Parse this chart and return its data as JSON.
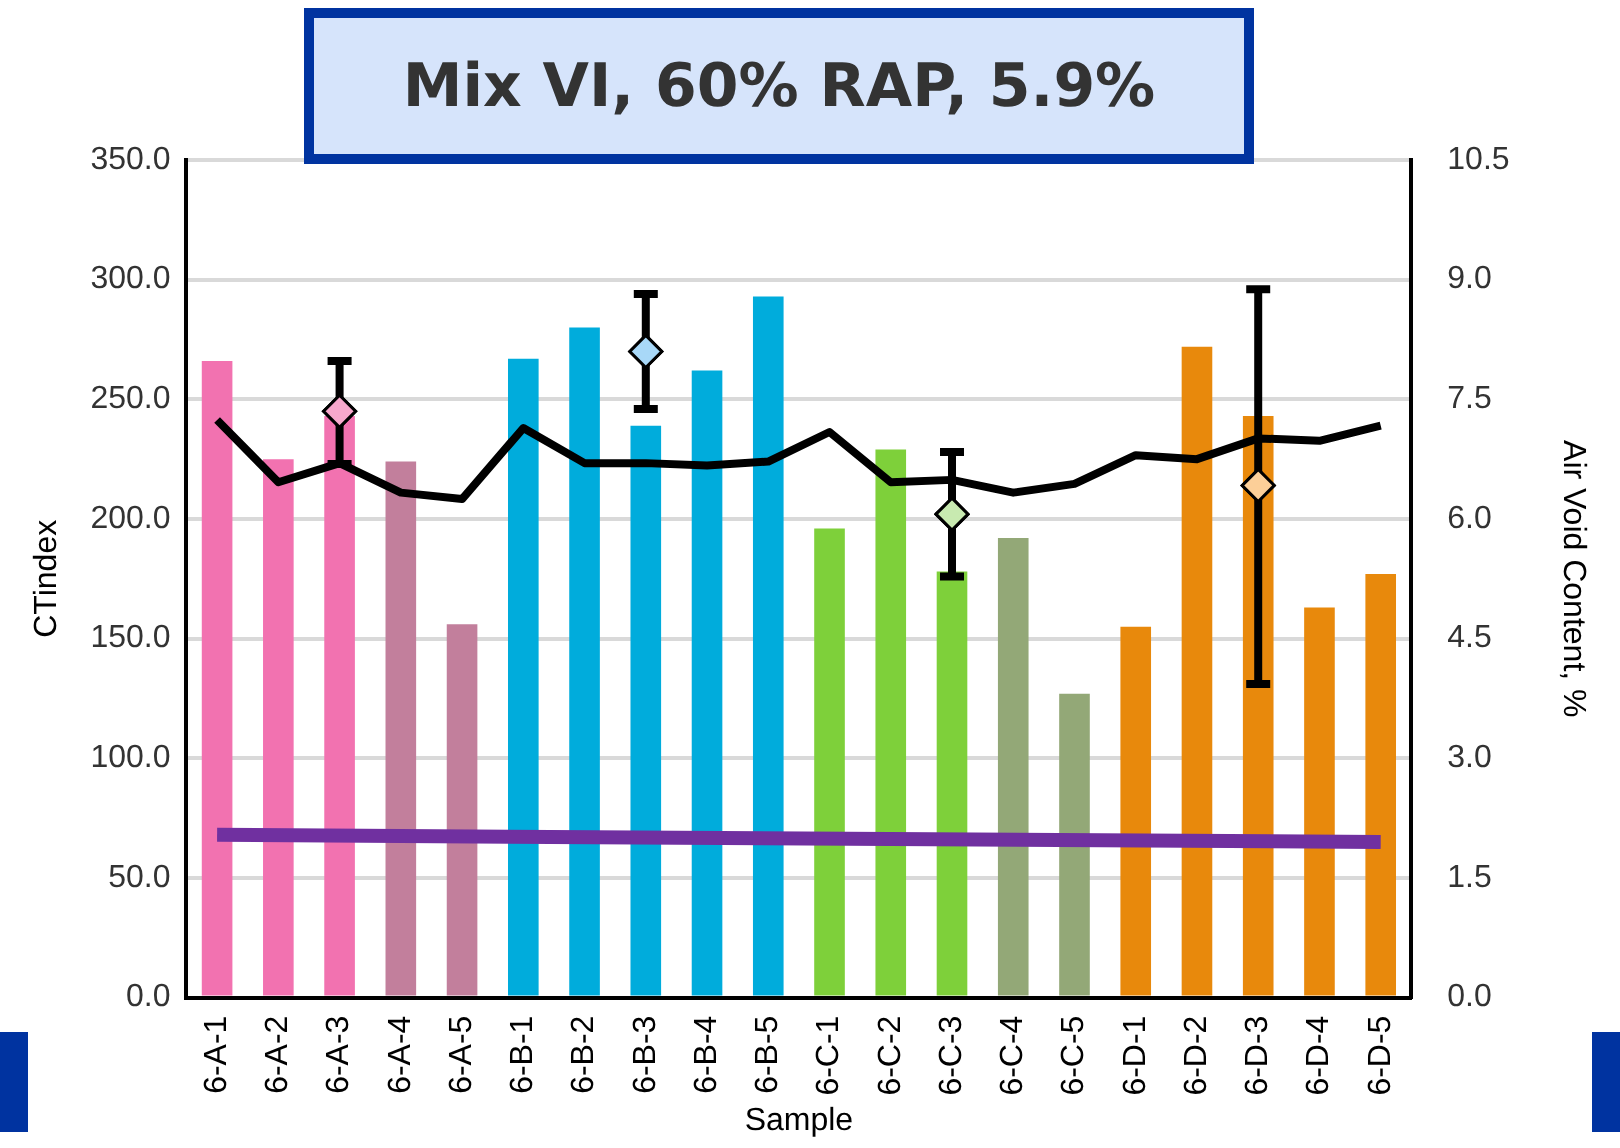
{
  "chart_data": {
    "type": "bar",
    "title": "Mix VI, 60% RAP, 5.9%",
    "xlabel": "Sample",
    "ylabel": "CTindex",
    "y2label": "Air Void Content, %",
    "categories": [
      "6-A-1",
      "6-A-2",
      "6-A-3",
      "6-A-4",
      "6-A-5",
      "6-B-1",
      "6-B-2",
      "6-B-3",
      "6-B-4",
      "6-B-5",
      "6-C-1",
      "6-C-2",
      "6-C-3",
      "6-C-4",
      "6-C-5",
      "6-D-1",
      "6-D-2",
      "6-D-3",
      "6-D-4",
      "6-D-5"
    ],
    "series": [
      {
        "colors": [
          "#f272b0",
          "#f272b0",
          "#f272b0",
          "#c27f9c",
          "#c27f9c",
          "#00acdc",
          "#00acdc",
          "#00acdc",
          "#00acdc",
          "#00acdc",
          "#7ed03a",
          "#7ed03a",
          "#7ed03a",
          "#93a877",
          "#93a877",
          "#e8890c",
          "#e8890c",
          "#e8890c",
          "#e8890c",
          "#e8890c"
        ],
        "values": [
          266,
          225,
          243,
          224,
          156,
          267,
          280,
          239,
          262,
          293,
          196,
          229,
          178,
          192,
          127,
          155,
          272,
          243,
          163,
          177
        ]
      },
      {
        "type": "line",
        "axis": "y2",
        "color": "#000000",
        "marker": "none",
        "values": [
          7.24,
          6.46,
          6.7,
          6.33,
          6.25,
          7.14,
          6.7,
          6.7,
          6.67,
          6.72,
          7.09,
          6.46,
          6.49,
          6.33,
          6.44,
          6.8,
          6.75,
          7.01,
          6.98,
          7.17
        ]
      },
      {
        "type": "line",
        "color": "#7030a0",
        "marker": "none",
        "x": [
          "6-A-1",
          "6-D-5"
        ],
        "values": [
          68,
          65
        ]
      },
      {
        "type": "scatter",
        "marker": "diamond",
        "x": [
          "6-A-3",
          "6-B-3",
          "6-C-3",
          "6-D-3"
        ],
        "colors": [
          "#f7a8cc",
          "#a8d8f8",
          "#c8eab0",
          "#fccf98"
        ],
        "values": [
          245,
          270,
          202,
          214
        ],
        "errors": [
          [
            223,
            266
          ],
          [
            246,
            294
          ],
          [
            176,
            228
          ],
          [
            131,
            296
          ]
        ]
      }
    ],
    "ylim": [
      0,
      350
    ],
    "yticks": [
      {
        "value": 0,
        "label": "0.0"
      },
      {
        "value": 50,
        "label": "50.0"
      },
      {
        "value": 100,
        "label": "100.0"
      },
      {
        "value": 150,
        "label": "150.0"
      },
      {
        "value": 200,
        "label": "200.0"
      },
      {
        "value": 250,
        "label": "250.0"
      },
      {
        "value": 300,
        "label": "300.0"
      },
      {
        "value": 350,
        "label": "350.0"
      }
    ],
    "y2lim": [
      0,
      10.5
    ],
    "y2ticks": [
      {
        "value": 0,
        "label": "0.0"
      },
      {
        "value": 1.5,
        "label": "1.5"
      },
      {
        "value": 3,
        "label": "3.0"
      },
      {
        "value": 4.5,
        "label": "4.5"
      },
      {
        "value": 6,
        "label": "6.0"
      },
      {
        "value": 7.5,
        "label": "7.5"
      },
      {
        "value": 9,
        "label": "9.0"
      },
      {
        "value": 10.5,
        "label": "10.5"
      }
    ],
    "grid": "y"
  }
}
